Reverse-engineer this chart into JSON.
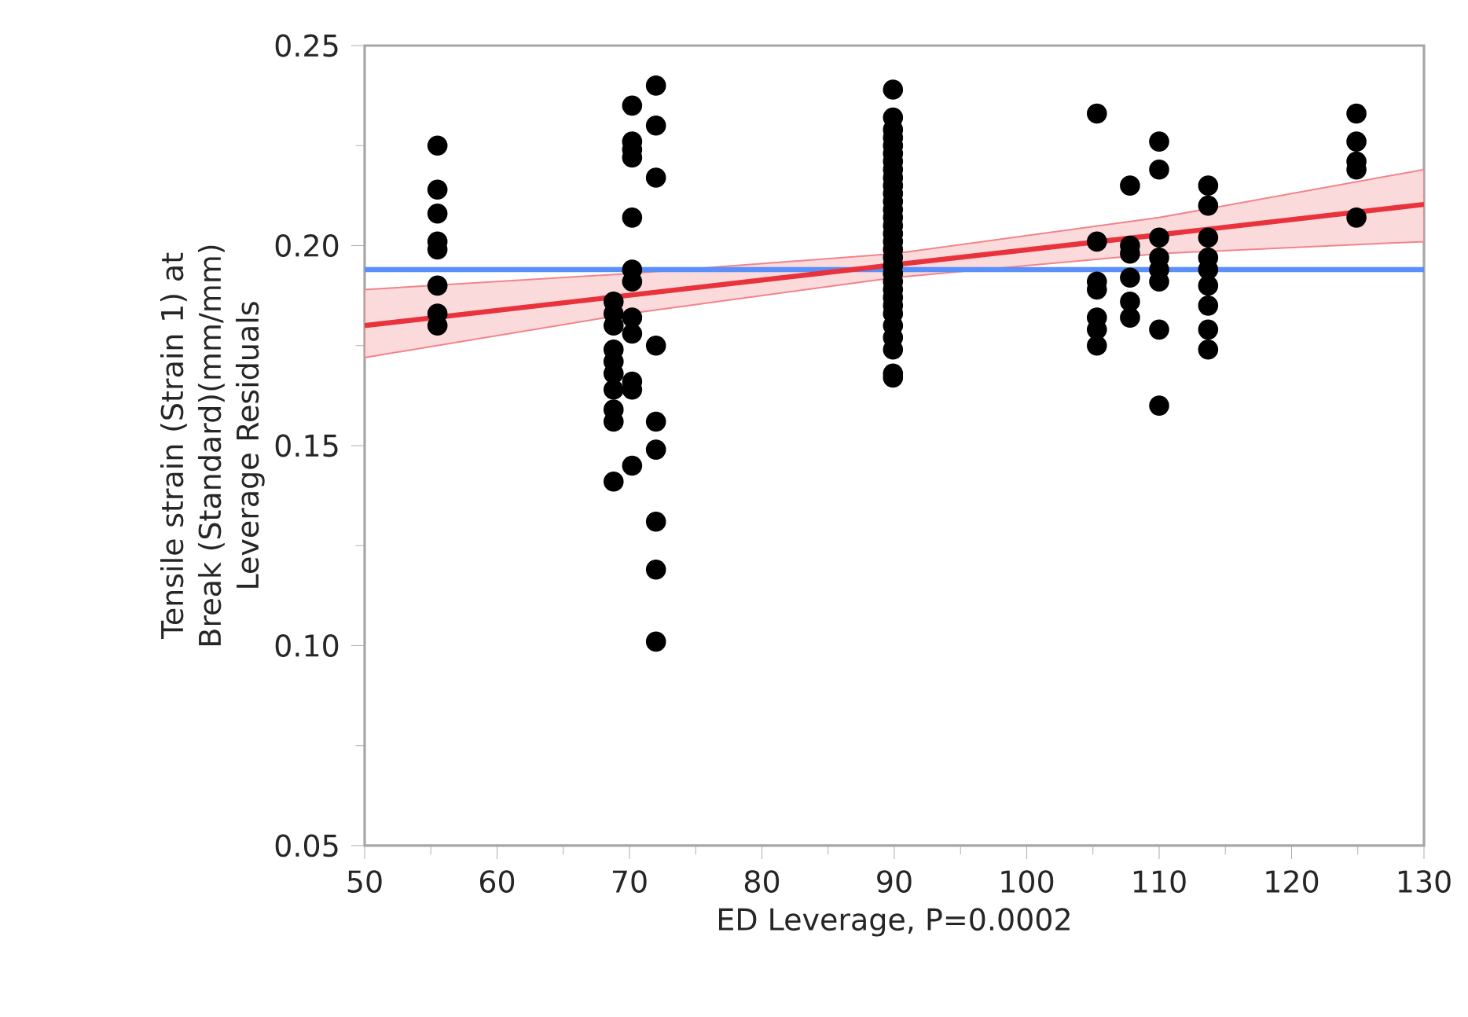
{
  "chart_data": {
    "type": "scatter",
    "xlabel": "ED Leverage, P=0.0002",
    "ylabel": "Tensile strain (Strain 1) at Break (Standard)(mm/mm) Leverage Residuals",
    "xlim": [
      50,
      130
    ],
    "xticks": [
      50,
      60,
      70,
      80,
      90,
      100,
      110,
      120,
      130
    ],
    "ylim": [
      0.05,
      0.25
    ],
    "yticks": [
      {
        "value": 0.05,
        "label": "0.05"
      },
      {
        "value": 0.1,
        "label": "0.10"
      },
      {
        "value": 0.15,
        "label": "0.15"
      },
      {
        "value": 0.2,
        "label": "0.20"
      },
      {
        "value": 0.25,
        "label": "0.25"
      }
    ],
    "grid": false,
    "ref_lines": [
      {
        "axis": "y",
        "value": 0.194,
        "color": "#5b8ff9"
      }
    ],
    "series": [
      {
        "color": "#000000",
        "marker": "circle",
        "x": [
          55.5,
          55.5,
          55.5,
          55.5,
          55.5,
          55.5,
          55.5,
          55.5,
          72,
          72,
          72,
          72,
          72,
          72,
          72,
          72,
          72,
          70.2,
          70.2,
          70.2,
          70.2,
          70.2,
          70.2,
          70.2,
          70.2,
          70.2,
          70.2,
          70.2,
          70.2,
          68.8,
          68.8,
          68.8,
          68.8,
          68.8,
          68.8,
          68.8,
          68.8,
          68.8,
          68.8,
          89.9,
          89.9,
          89.9,
          89.9,
          89.9,
          89.9,
          89.9,
          89.9,
          89.9,
          89.9,
          89.9,
          89.9,
          89.9,
          89.9,
          89.9,
          89.9,
          89.9,
          89.9,
          89.9,
          89.9,
          89.9,
          89.9,
          89.9,
          89.9,
          89.9,
          89.9,
          89.9,
          89.9,
          89.9,
          89.9,
          89.9,
          105.3,
          105.3,
          105.3,
          105.3,
          105.3,
          105.3,
          105.3,
          107.8,
          107.8,
          107.8,
          107.8,
          107.8,
          107.8,
          110,
          110,
          110,
          110,
          110,
          110,
          110,
          110,
          113.7,
          113.7,
          113.7,
          113.7,
          113.7,
          113.7,
          113.7,
          113.7,
          113.7,
          124.9,
          124.9,
          124.9,
          124.9,
          124.9
        ],
        "values": [
          0.225,
          0.214,
          0.208,
          0.201,
          0.199,
          0.19,
          0.183,
          0.18,
          0.24,
          0.23,
          0.217,
          0.175,
          0.156,
          0.149,
          0.131,
          0.119,
          0.101,
          0.235,
          0.226,
          0.224,
          0.222,
          0.207,
          0.194,
          0.191,
          0.182,
          0.178,
          0.166,
          0.164,
          0.145,
          0.186,
          0.183,
          0.18,
          0.174,
          0.171,
          0.168,
          0.164,
          0.159,
          0.156,
          0.141,
          0.239,
          0.232,
          0.229,
          0.227,
          0.225,
          0.223,
          0.221,
          0.219,
          0.217,
          0.215,
          0.213,
          0.211,
          0.209,
          0.207,
          0.205,
          0.203,
          0.201,
          0.199,
          0.197,
          0.195,
          0.193,
          0.191,
          0.189,
          0.187,
          0.185,
          0.183,
          0.18,
          0.177,
          0.174,
          0.168,
          0.167,
          0.233,
          0.201,
          0.191,
          0.189,
          0.182,
          0.179,
          0.175,
          0.215,
          0.2,
          0.198,
          0.192,
          0.186,
          0.182,
          0.226,
          0.219,
          0.202,
          0.197,
          0.194,
          0.191,
          0.179,
          0.16,
          0.215,
          0.21,
          0.202,
          0.197,
          0.194,
          0.19,
          0.185,
          0.179,
          0.174,
          0.233,
          0.226,
          0.221,
          0.219,
          0.207
        ]
      },
      {
        "type": "line",
        "color": "#e8323c",
        "marker": "none",
        "x": [
          50,
          70,
          90,
          110,
          130
        ],
        "values": [
          0.18,
          0.1876,
          0.1952,
          0.2027,
          0.2103
        ],
        "lower": [
          0.172,
          0.183,
          0.192,
          0.198,
          0.201
        ],
        "upper": [
          0.189,
          0.193,
          0.198,
          0.207,
          0.219
        ]
      }
    ]
  }
}
